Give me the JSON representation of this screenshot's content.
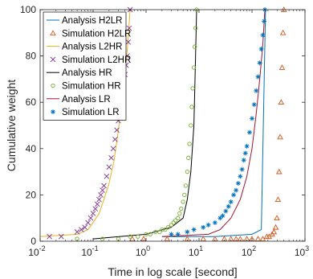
{
  "chart_data": {
    "type": "line",
    "xlabel": "Time in log scale [second]",
    "ylabel": "Cumulative weight",
    "xscale": "log",
    "xlim": [
      0.01,
      1000
    ],
    "ylim": [
      0,
      100
    ],
    "x_ticks": [
      0.01,
      0.1,
      1,
      10,
      100,
      1000
    ],
    "x_tick_labels": [
      {
        "base": "10",
        "exp": "-2"
      },
      {
        "base": "10",
        "exp": "-1"
      },
      {
        "base": "10",
        "exp": "0"
      },
      {
        "base": "10",
        "exp": "1"
      },
      {
        "base": "10",
        "exp": "2"
      },
      {
        "base": "10",
        "exp": "3"
      }
    ],
    "y_ticks": [
      0,
      20,
      40,
      60,
      80,
      100
    ],
    "grid": false,
    "legend_position": "top-left",
    "series": [
      {
        "name": "Analysis H2LR",
        "kind": "line",
        "color": "#0072BD",
        "x": [
          2,
          20,
          100,
          150,
          180
        ],
        "y": [
          2,
          2,
          3,
          5,
          100
        ]
      },
      {
        "name": "Simulation H2LR",
        "kind": "marker",
        "marker": "triangle",
        "color": "#D95319",
        "x": [
          0.55,
          0.9,
          2.5,
          6,
          12,
          20,
          30,
          40,
          50,
          60,
          80,
          100,
          130,
          160,
          190,
          210,
          240,
          260,
          280,
          295,
          310,
          325,
          340,
          355,
          370,
          385,
          400
        ],
        "y": [
          1,
          1,
          1,
          1,
          1,
          1,
          1,
          1,
          1,
          1,
          1,
          1,
          1,
          1,
          2,
          2,
          3,
          4,
          6,
          10,
          18,
          30,
          45,
          60,
          75,
          90,
          100
        ]
      },
      {
        "name": "Analysis L2HR",
        "kind": "line",
        "color": "#EDB120",
        "x": [
          0.01,
          0.05,
          0.08,
          0.1,
          0.13,
          0.16,
          0.2,
          0.25,
          0.3,
          0.35,
          0.4,
          0.45,
          0.5
        ],
        "y": [
          2,
          3,
          5,
          8,
          12,
          18,
          25,
          35,
          48,
          60,
          72,
          85,
          100
        ]
      },
      {
        "name": "Simulation L2HR",
        "kind": "marker",
        "marker": "x",
        "color": "#7E2F8E",
        "x": [
          0.015,
          0.025,
          0.05,
          0.06,
          0.07,
          0.08,
          0.09,
          0.1,
          0.11,
          0.12,
          0.13,
          0.14,
          0.15,
          0.16,
          0.18,
          0.2,
          0.22,
          0.24,
          0.26,
          0.28,
          0.3,
          0.32,
          0.34,
          0.36,
          0.38,
          0.4,
          0.42,
          0.44,
          0.46,
          0.48,
          0.5
        ],
        "y": [
          2,
          2,
          4,
          5,
          6,
          8,
          10,
          12,
          14,
          16,
          18,
          20,
          22,
          24,
          28,
          32,
          36,
          40,
          44,
          48,
          52,
          56,
          60,
          64,
          68,
          72,
          76,
          80,
          86,
          92,
          100
        ]
      },
      {
        "name": "Analysis HR",
        "kind": "line",
        "color": "#000000",
        "x": [
          0.1,
          1,
          3,
          5,
          6,
          7,
          8,
          8.5,
          9
        ],
        "y": [
          1,
          3,
          6,
          10,
          18,
          30,
          50,
          75,
          100
        ]
      },
      {
        "name": "Simulation HR",
        "kind": "marker",
        "marker": "circle",
        "color": "#77AC30",
        "x": [
          0.05,
          0.15,
          0.3,
          0.5,
          0.7,
          1,
          1.2,
          1.5,
          1.8,
          2,
          2.3,
          2.6,
          3,
          3.3,
          3.6,
          4,
          4.3,
          4.6,
          5,
          5.3,
          5.6,
          6,
          6.3,
          6.6,
          7,
          7.3,
          7.6,
          8,
          8.3,
          8.6,
          9
        ],
        "y": [
          1,
          1,
          1,
          2,
          2,
          3,
          3,
          4,
          4,
          5,
          5,
          6,
          7,
          8,
          9,
          10,
          12,
          14,
          17,
          20,
          24,
          30,
          36,
          42,
          50,
          58,
          66,
          75,
          84,
          92,
          100
        ]
      },
      {
        "name": "Analysis LR",
        "kind": "line",
        "color": "#A2142F",
        "x": [
          2,
          15,
          25,
          40,
          60,
          80,
          100,
          120,
          140,
          160,
          175
        ],
        "y": [
          2,
          3,
          5,
          10,
          18,
          28,
          40,
          55,
          70,
          85,
          100
        ]
      },
      {
        "name": "Simulation LR",
        "kind": "marker",
        "marker": "asterisk",
        "color": "#0072BD",
        "x": [
          3,
          4,
          6,
          8,
          12,
          15,
          20,
          25,
          28,
          32,
          36,
          40,
          45,
          50,
          55,
          60,
          65,
          70,
          75,
          80,
          90,
          100,
          110,
          120,
          130,
          140,
          150,
          160,
          170,
          175
        ],
        "y": [
          3,
          3,
          4,
          5,
          6,
          7,
          8,
          10,
          11,
          13,
          15,
          17,
          20,
          22,
          25,
          28,
          31,
          35,
          38,
          41,
          47,
          53,
          59,
          65,
          71,
          77,
          83,
          89,
          95,
          100
        ]
      }
    ]
  }
}
